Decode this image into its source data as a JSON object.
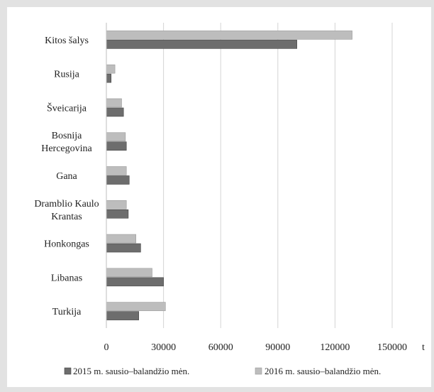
{
  "chart_data": {
    "type": "bar",
    "orientation": "horizontal",
    "categories": [
      [
        "Kitos šalys"
      ],
      [
        "Rusija"
      ],
      [
        "Šveicarija"
      ],
      [
        "Bosnija",
        "Hercegovina"
      ],
      [
        "Gana"
      ],
      [
        "Dramblio Kaulo",
        "Krantas"
      ],
      [
        "Honkongas"
      ],
      [
        "Libanas"
      ],
      [
        "Turkija"
      ]
    ],
    "series": [
      {
        "name": "2016 m. sausio–balandžio mėn.",
        "color": "#bdbdbd",
        "values": [
          129000,
          4500,
          8000,
          10000,
          10500,
          10500,
          15500,
          24000,
          31000
        ]
      },
      {
        "name": "2015 m. sausio–balandžio mėn.",
        "color": "#6d6d6d",
        "values": [
          100000,
          2500,
          9000,
          10500,
          12000,
          11500,
          18000,
          30000,
          17000
        ]
      }
    ],
    "xlim": [
      0,
      150000
    ],
    "xticks": [
      "0",
      "30000",
      "60000",
      "90000",
      "120000",
      "150000"
    ],
    "xunit": "t",
    "grid": true,
    "legend_position": "bottom"
  }
}
